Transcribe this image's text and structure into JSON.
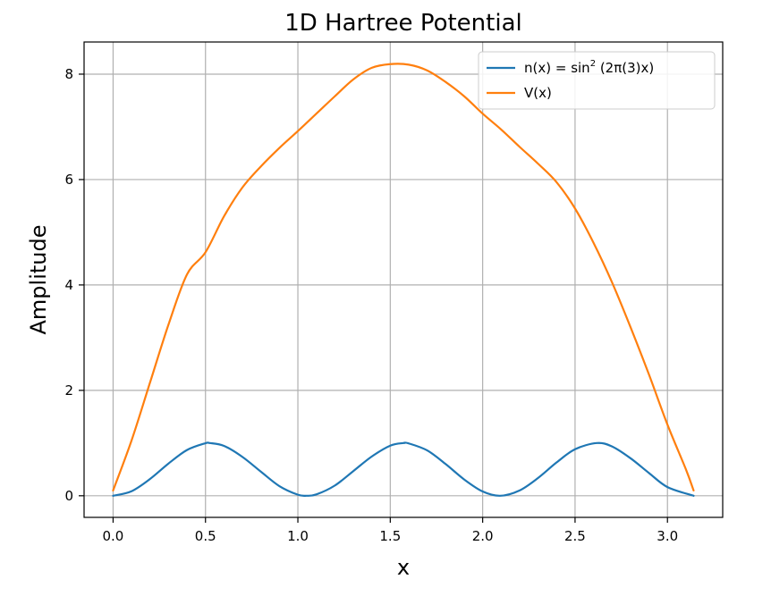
{
  "chart_data": {
    "type": "line",
    "title": "1D Hartree Potential",
    "xlabel": "x",
    "ylabel": "Amplitude",
    "xlim": [
      -0.157,
      3.299
    ],
    "ylim": [
      -0.41,
      8.61
    ],
    "xticks": [
      0.0,
      0.5,
      1.0,
      1.5,
      2.0,
      2.5,
      3.0
    ],
    "xtick_labels": [
      "0.0",
      "0.5",
      "1.0",
      "1.5",
      "2.0",
      "2.5",
      "3.0"
    ],
    "yticks": [
      0,
      2,
      4,
      6,
      8
    ],
    "ytick_labels": [
      "0",
      "2",
      "4",
      "6",
      "8"
    ],
    "grid": true,
    "legend_position": "top-right",
    "series": [
      {
        "name": "n(x) = sin²(2π(3)x)",
        "legend": {
          "prefix": "n(x) = sin",
          "sup": "2",
          "suffix": " (2π(3)x)"
        },
        "color": "#1f77b4",
        "x": [
          0.0,
          0.1,
          0.2,
          0.3,
          0.4,
          0.5,
          0.5236,
          0.6,
          0.7,
          0.8,
          0.9,
          1.0,
          1.0472,
          1.1,
          1.2,
          1.3,
          1.4,
          1.5,
          1.5708,
          1.6,
          1.7,
          1.8,
          1.9,
          2.0,
          2.0944,
          2.2,
          2.3,
          2.4,
          2.5,
          2.618,
          2.7,
          2.8,
          2.9,
          3.0,
          3.1416
        ],
        "y": [
          0.0,
          0.087,
          0.319,
          0.612,
          0.868,
          0.997,
          1.0,
          0.947,
          0.737,
          0.457,
          0.183,
          0.02,
          0.0,
          0.025,
          0.194,
          0.468,
          0.745,
          0.951,
          1.0,
          0.993,
          0.86,
          0.601,
          0.309,
          0.081,
          0.0,
          0.101,
          0.338,
          0.632,
          0.883,
          1.0,
          0.935,
          0.712,
          0.432,
          0.165,
          0.0
        ]
      },
      {
        "name": "V(x)",
        "color": "#ff7f0e",
        "x": [
          0.0,
          0.1,
          0.2,
          0.3,
          0.4,
          0.5,
          0.6,
          0.7,
          0.8,
          0.9,
          1.0,
          1.1,
          1.2,
          1.3,
          1.4,
          1.5,
          1.6,
          1.7,
          1.8,
          1.9,
          2.0,
          2.1,
          2.2,
          2.3,
          2.4,
          2.5,
          2.6,
          2.7,
          2.8,
          2.9,
          3.0,
          3.1,
          3.1416
        ],
        "y": [
          0.1,
          1.05,
          2.15,
          3.25,
          4.2,
          4.62,
          5.3,
          5.85,
          6.25,
          6.6,
          6.92,
          7.25,
          7.58,
          7.9,
          8.12,
          8.19,
          8.18,
          8.07,
          7.85,
          7.58,
          7.25,
          6.95,
          6.62,
          6.3,
          5.95,
          5.45,
          4.8,
          4.05,
          3.2,
          2.3,
          1.35,
          0.5,
          0.1
        ]
      }
    ]
  }
}
